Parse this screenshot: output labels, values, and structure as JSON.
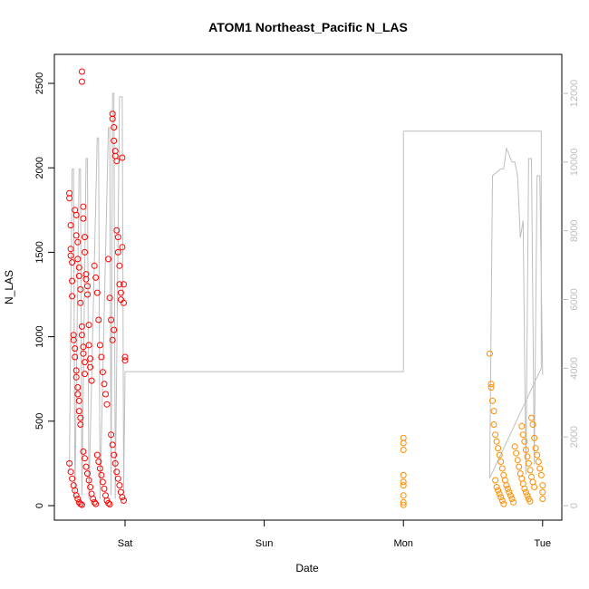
{
  "chart_data": {
    "type": "scatter",
    "title": "ATOM1 Northeast_Pacific N_LAS",
    "xlabel": "Date",
    "ylabel": "N_LAS",
    "x_ticks": [
      "Sat",
      "Sun",
      "Mon",
      "Tue"
    ],
    "y_ticks": [
      0,
      500,
      1000,
      1500,
      2000,
      2500
    ],
    "y_right_ticks": [
      0,
      2000,
      4000,
      6000,
      8000,
      10000,
      12000
    ],
    "ylim": [
      0,
      2600
    ],
    "y_right_lim": [
      0,
      12600
    ],
    "colors": {
      "series1": "#ff0000",
      "series2": "#ff8c00",
      "line": "#bebebe",
      "right_axis": "#bdbdbd"
    },
    "series": [
      {
        "color_key": "series1",
        "x_range_days": [
          -0.45,
          0.0
        ],
        "points": [
          [
            -0.4,
            1850
          ],
          [
            -0.4,
            1820
          ],
          [
            -0.39,
            1660
          ],
          [
            -0.39,
            1520
          ],
          [
            -0.39,
            1480
          ],
          [
            -0.38,
            1440
          ],
          [
            -0.38,
            1330
          ],
          [
            -0.38,
            1240
          ],
          [
            -0.37,
            1010
          ],
          [
            -0.37,
            980
          ],
          [
            -0.36,
            930
          ],
          [
            -0.36,
            880
          ],
          [
            -0.35,
            800
          ],
          [
            -0.35,
            760
          ],
          [
            -0.34,
            700
          ],
          [
            -0.34,
            660
          ],
          [
            -0.33,
            620
          ],
          [
            -0.33,
            560
          ],
          [
            -0.32,
            520
          ],
          [
            -0.32,
            480
          ],
          [
            -0.36,
            1750
          ],
          [
            -0.35,
            1720
          ],
          [
            -0.35,
            1600
          ],
          [
            -0.34,
            1560
          ],
          [
            -0.34,
            1460
          ],
          [
            -0.33,
            1410
          ],
          [
            -0.33,
            1360
          ],
          [
            -0.32,
            1280
          ],
          [
            -0.32,
            1200
          ],
          [
            -0.31,
            1060
          ],
          [
            -0.31,
            1010
          ],
          [
            -0.3,
            940
          ],
          [
            -0.3,
            900
          ],
          [
            -0.29,
            850
          ],
          [
            -0.29,
            780
          ],
          [
            -0.31,
            2570
          ],
          [
            -0.31,
            2510
          ],
          [
            -0.3,
            1770
          ],
          [
            -0.3,
            1700
          ],
          [
            -0.29,
            1590
          ],
          [
            -0.29,
            1500
          ],
          [
            -0.28,
            1370
          ],
          [
            -0.28,
            1340
          ],
          [
            -0.27,
            1300
          ],
          [
            -0.27,
            1250
          ],
          [
            -0.26,
            1070
          ],
          [
            -0.26,
            950
          ],
          [
            -0.25,
            870
          ],
          [
            -0.25,
            820
          ],
          [
            -0.24,
            740
          ],
          [
            -0.22,
            1420
          ],
          [
            -0.21,
            1350
          ],
          [
            -0.2,
            1260
          ],
          [
            -0.19,
            1100
          ],
          [
            -0.18,
            950
          ],
          [
            -0.17,
            880
          ],
          [
            -0.16,
            790
          ],
          [
            -0.15,
            720
          ],
          [
            -0.14,
            660
          ],
          [
            -0.13,
            600
          ],
          [
            -0.12,
            1460
          ],
          [
            -0.11,
            1230
          ],
          [
            -0.1,
            1100
          ],
          [
            -0.09,
            980
          ],
          [
            -0.08,
            1040
          ],
          [
            -0.09,
            2320
          ],
          [
            -0.09,
            2290
          ],
          [
            -0.08,
            2240
          ],
          [
            -0.08,
            2160
          ],
          [
            -0.07,
            2100
          ],
          [
            -0.07,
            2070
          ],
          [
            -0.06,
            2040
          ],
          [
            -0.06,
            1630
          ],
          [
            -0.05,
            1590
          ],
          [
            -0.05,
            1500
          ],
          [
            -0.04,
            1420
          ],
          [
            -0.04,
            1310
          ],
          [
            -0.03,
            1260
          ],
          [
            -0.03,
            1220
          ],
          [
            -0.02,
            2060
          ],
          [
            -0.02,
            1530
          ],
          [
            -0.01,
            1310
          ],
          [
            -0.01,
            1200
          ],
          [
            0.0,
            880
          ],
          [
            0.0,
            860
          ],
          [
            -0.4,
            250
          ],
          [
            -0.39,
            200
          ],
          [
            -0.38,
            160
          ],
          [
            -0.37,
            120
          ],
          [
            -0.36,
            90
          ],
          [
            -0.35,
            60
          ],
          [
            -0.34,
            40
          ],
          [
            -0.33,
            20
          ],
          [
            -0.32,
            10
          ],
          [
            -0.31,
            5
          ],
          [
            -0.3,
            320
          ],
          [
            -0.29,
            280
          ],
          [
            -0.28,
            230
          ],
          [
            -0.27,
            190
          ],
          [
            -0.26,
            150
          ],
          [
            -0.25,
            110
          ],
          [
            -0.24,
            70
          ],
          [
            -0.23,
            40
          ],
          [
            -0.22,
            20
          ],
          [
            -0.21,
            10
          ],
          [
            -0.2,
            300
          ],
          [
            -0.19,
            260
          ],
          [
            -0.18,
            220
          ],
          [
            -0.17,
            180
          ],
          [
            -0.16,
            140
          ],
          [
            -0.15,
            100
          ],
          [
            -0.14,
            60
          ],
          [
            -0.13,
            30
          ],
          [
            -0.12,
            15
          ],
          [
            -0.11,
            8
          ],
          [
            -0.1,
            420
          ],
          [
            -0.09,
            360
          ],
          [
            -0.08,
            300
          ],
          [
            -0.07,
            250
          ],
          [
            -0.06,
            200
          ],
          [
            -0.05,
            160
          ],
          [
            -0.04,
            120
          ],
          [
            -0.03,
            80
          ],
          [
            -0.02,
            50
          ],
          [
            -0.01,
            30
          ]
        ]
      },
      {
        "color_key": "series2",
        "x_range_days": [
          0.99,
          3.0
        ],
        "points": [
          [
            2.0,
            400
          ],
          [
            2.0,
            370
          ],
          [
            2.0,
            330
          ],
          [
            2.0,
            180
          ],
          [
            2.0,
            140
          ],
          [
            2.0,
            120
          ],
          [
            2.0,
            60
          ],
          [
            2.0,
            20
          ],
          [
            2.0,
            5
          ],
          [
            2.62,
            900
          ],
          [
            2.63,
            720
          ],
          [
            2.63,
            700
          ],
          [
            2.64,
            620
          ],
          [
            2.65,
            560
          ],
          [
            2.65,
            480
          ],
          [
            2.66,
            420
          ],
          [
            2.67,
            380
          ],
          [
            2.68,
            340
          ],
          [
            2.69,
            300
          ],
          [
            2.7,
            260
          ],
          [
            2.71,
            220
          ],
          [
            2.72,
            180
          ],
          [
            2.73,
            150
          ],
          [
            2.74,
            120
          ],
          [
            2.75,
            100
          ],
          [
            2.76,
            80
          ],
          [
            2.77,
            60
          ],
          [
            2.78,
            40
          ],
          [
            2.79,
            20
          ],
          [
            2.8,
            350
          ],
          [
            2.81,
            310
          ],
          [
            2.82,
            270
          ],
          [
            2.83,
            230
          ],
          [
            2.84,
            190
          ],
          [
            2.85,
            160
          ],
          [
            2.86,
            130
          ],
          [
            2.87,
            100
          ],
          [
            2.88,
            80
          ],
          [
            2.89,
            60
          ],
          [
            2.9,
            40
          ],
          [
            2.91,
            25
          ],
          [
            2.92,
            520
          ],
          [
            2.93,
            480
          ],
          [
            2.94,
            400
          ],
          [
            2.95,
            340
          ],
          [
            2.96,
            300
          ],
          [
            2.97,
            260
          ],
          [
            2.98,
            220
          ],
          [
            2.99,
            180
          ],
          [
            3.0,
            120
          ],
          [
            3.0,
            80
          ],
          [
            3.0,
            40
          ],
          [
            2.66,
            150
          ],
          [
            2.67,
            110
          ],
          [
            2.68,
            90
          ],
          [
            2.69,
            70
          ],
          [
            2.7,
            50
          ],
          [
            2.71,
            30
          ],
          [
            2.72,
            10
          ],
          [
            2.85,
            470
          ],
          [
            2.86,
            420
          ],
          [
            2.87,
            380
          ],
          [
            2.88,
            330
          ],
          [
            2.89,
            290
          ],
          [
            2.9,
            250
          ],
          [
            2.91,
            210
          ],
          [
            2.92,
            170
          ],
          [
            2.93,
            140
          ],
          [
            2.94,
            110
          ]
        ]
      }
    ],
    "line_series": {
      "color_key": "line",
      "axis": "right",
      "points": [
        [
          -0.4,
          1000
        ],
        [
          -0.38,
          9800
        ],
        [
          -0.37,
          9800
        ],
        [
          -0.36,
          200
        ],
        [
          -0.33,
          9800
        ],
        [
          -0.32,
          9800
        ],
        [
          -0.31,
          300
        ],
        [
          -0.28,
          10100
        ],
        [
          -0.27,
          10100
        ],
        [
          -0.26,
          200
        ],
        [
          -0.2,
          10700
        ],
        [
          -0.19,
          10700
        ],
        [
          -0.18,
          200
        ],
        [
          -0.12,
          11000
        ],
        [
          -0.11,
          11000
        ],
        [
          -0.1,
          300
        ],
        [
          -0.09,
          12000
        ],
        [
          -0.08,
          12000
        ],
        [
          -0.07,
          200
        ],
        [
          -0.04,
          11900
        ],
        [
          -0.02,
          11900
        ],
        [
          -0.01,
          400
        ],
        [
          0.0,
          3900
        ],
        [
          2.0,
          3900
        ],
        [
          2.0,
          10900
        ],
        [
          2.99,
          10900
        ],
        [
          2.99,
          4000
        ],
        [
          2.62,
          800
        ],
        [
          2.64,
          9600
        ],
        [
          2.7,
          9800
        ],
        [
          2.72,
          9800
        ],
        [
          2.74,
          10400
        ],
        [
          2.78,
          10000
        ],
        [
          2.8,
          10000
        ],
        [
          2.82,
          9600
        ],
        [
          2.84,
          7800
        ],
        [
          2.86,
          8300
        ],
        [
          2.88,
          900
        ],
        [
          2.9,
          10100
        ],
        [
          2.92,
          10100
        ],
        [
          2.94,
          1200
        ],
        [
          2.96,
          9600
        ],
        [
          2.98,
          9600
        ],
        [
          3.0,
          3800
        ]
      ]
    }
  }
}
